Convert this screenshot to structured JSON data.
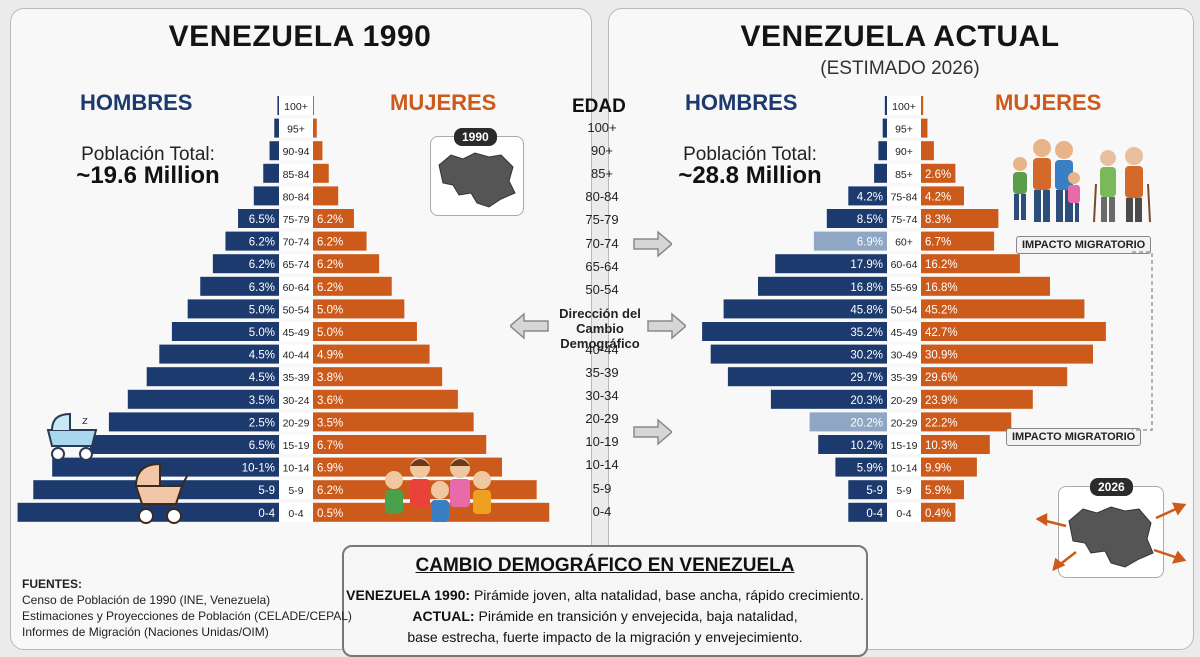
{
  "left": {
    "title": "VENEZUELA 1990",
    "men_label": "HOMBRES",
    "women_label": "MUJERES",
    "population_label": "Población Total:",
    "population_value": "~19.6 Million",
    "map_tag": "1990"
  },
  "right": {
    "title": "VENEZUELA ACTUAL",
    "subtitle": "(ESTIMADO 2026)",
    "men_label": "HOMBRES",
    "women_label": "MUJERES",
    "population_label": "Población Total:",
    "population_value": "~28.8 Million",
    "map_tag": "2026",
    "migration_badges": [
      "IMPACTO MIGRATORIO",
      "IMPACTO MIGRATORIO"
    ]
  },
  "middle": {
    "header": "EDAD",
    "ages": [
      "100+",
      "90+",
      "85+",
      "80-84",
      "75-79",
      "70-74",
      "65-64",
      "50-54",
      "40-44",
      "35-39",
      "30-34",
      "20-29",
      "10-19",
      "10-14",
      "5-9",
      "0-4"
    ],
    "direction_note": [
      "Dirección del",
      "Cambio",
      "Demográfico"
    ]
  },
  "summary": {
    "title": "CAMBIO DEMOGRÁFICO EN VENEZUELA",
    "line1_bold": "VENEZUELA 1990:",
    "line1_text": " Pirámide joven, alta natalidad, base ancha, rápido crecimiento.",
    "line2_bold": "ACTUAL:",
    "line2_text": " Pirámide en transición y envejecida, baja natalidad,",
    "line3_text": "base estrecha, fuerte impacto de la migración y envejecimiento."
  },
  "sources": {
    "header": "FUENTES:",
    "items": [
      "Censo de Población de 1990 (INE, Venezuela)",
      "Estimaciones y Proyecciones de Población (CELADE/CEPAL)",
      "Informes de Migración (Naciones Unidas/OIM)"
    ]
  },
  "colors": {
    "men": "#1d3a6e",
    "women": "#cc5a1a",
    "migration": "#8fa6c4"
  },
  "chart_data": [
    {
      "type": "bar",
      "title": "VENEZUELA 1990",
      "orientation": "population-pyramid",
      "categories": [
        "100+",
        "95+",
        "90-94",
        "85-84",
        "80-84",
        "75-79",
        "70-74",
        "65-74",
        "60-64",
        "50-54",
        "45-49",
        "40-44",
        "35-39",
        "30-24",
        "20-29",
        "15-19",
        "10-14",
        "5-9",
        "0-4"
      ],
      "series": [
        {
          "name": "HOMBRES",
          "values": [
            0.05,
            0.15,
            0.3,
            0.5,
            0.8,
            1.3,
            1.7,
            2.1,
            2.5,
            2.9,
            3.4,
            3.8,
            4.2,
            4.8,
            5.4,
            6.0,
            7.2,
            7.8,
            8.3
          ],
          "labels": [
            "",
            "",
            "",
            "",
            "",
            "6.5%",
            "6.2%",
            "6.2%",
            "6.3%",
            "5.0%",
            "5.0%",
            "4.5%",
            "4.5%",
            "3.5%",
            "2.5%",
            "6.5%",
            "10-1%",
            "5-9",
            "0-4"
          ]
        },
        {
          "name": "MUJERES",
          "values": [
            0.03,
            0.12,
            0.3,
            0.5,
            0.8,
            1.3,
            1.7,
            2.1,
            2.5,
            2.9,
            3.3,
            3.7,
            4.1,
            4.6,
            5.1,
            5.5,
            6.0,
            7.1,
            7.5
          ],
          "labels": [
            "",
            "",
            "",
            "",
            "",
            "6.2%",
            "6.2%",
            "6.2%",
            "6.2%",
            "5.0%",
            "5.0%",
            "4.9%",
            "3.8%",
            "3.6%",
            "3.5%",
            "6.7%",
            "6.9%",
            "6.2%",
            "0.5%"
          ]
        }
      ]
    },
    {
      "type": "bar",
      "title": "VENEZUELA ACTUAL",
      "subtitle": "(ESTIMADO 2026)",
      "orientation": "population-pyramid",
      "categories": [
        "100+",
        "95+",
        "90+",
        "85+",
        "75-84",
        "75-74",
        "60+",
        "60-64",
        "55-69",
        "50-54",
        "45-49",
        "30-49",
        "35-39",
        "20-29",
        "20-29",
        "15-19",
        "10-14",
        "5-9",
        "0-4"
      ],
      "series": [
        {
          "name": "HOMBRES",
          "values": [
            0.05,
            0.1,
            0.2,
            0.3,
            0.9,
            1.4,
            1.7,
            2.6,
            3.0,
            3.8,
            4.3,
            4.1,
            3.7,
            2.7,
            1.8,
            1.6,
            1.2,
            0.9,
            0.9
          ],
          "labels": [
            "",
            "",
            "",
            "",
            "4.2%",
            "8.5%",
            "6.9%",
            "17.9%",
            "16.8%",
            "45.8%",
            "35.2%",
            "30.2%",
            "29.7%",
            "20.3%",
            "20.2%",
            "10.2%",
            "5.9%",
            "5-9",
            "0-4"
          ]
        },
        {
          "name": "MUJERES",
          "values": [
            0.05,
            0.15,
            0.3,
            0.8,
            1.0,
            1.8,
            1.7,
            2.3,
            3.0,
            3.8,
            4.3,
            4.0,
            3.4,
            2.6,
            2.1,
            1.6,
            1.3,
            1.0,
            0.8
          ],
          "labels": [
            "",
            "",
            "",
            "2.6%",
            "4.2%",
            "8.3%",
            "6.7%",
            "16.2%",
            "16.8%",
            "45.2%",
            "42.7%",
            "30.9%",
            "29.6%",
            "23.9%",
            "22.2%",
            "10.3%",
            "9.9%",
            "5.9%",
            "0.4%"
          ]
        }
      ],
      "highlighted_rows": [
        "60+",
        "20-29"
      ]
    }
  ]
}
